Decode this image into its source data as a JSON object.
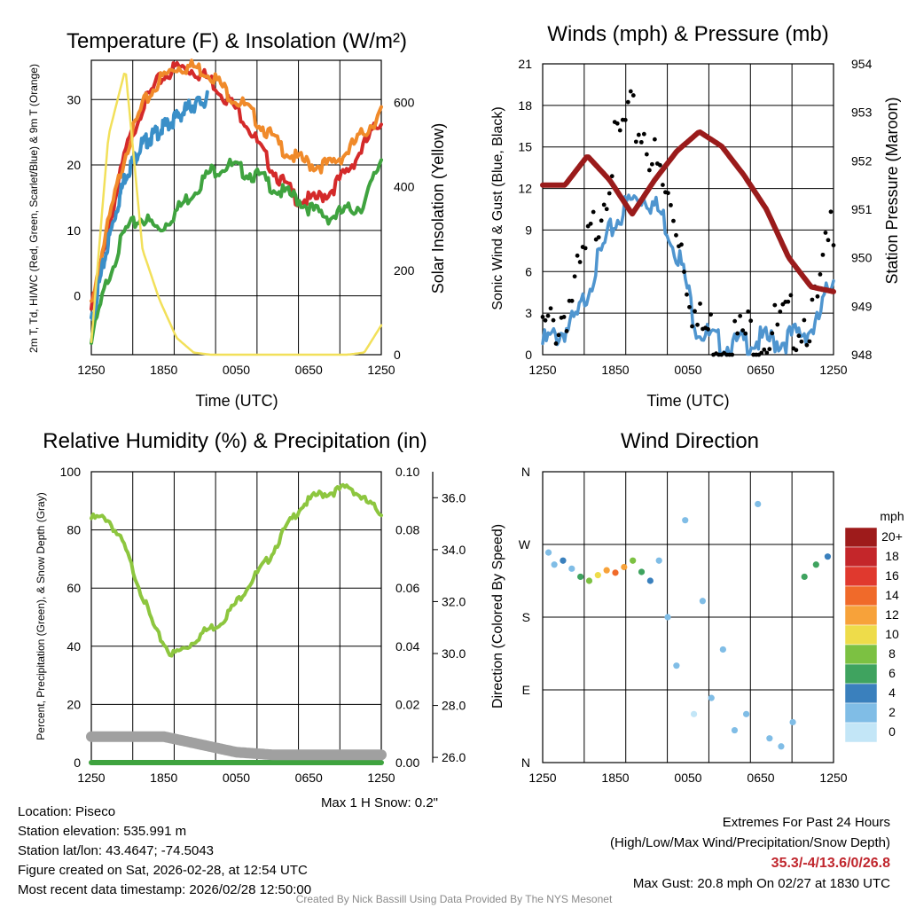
{
  "chart_data": [
    {
      "type": "line",
      "title": "Temperature (F) & Insolation (W/m²)",
      "xlabel": "Time (UTC)",
      "ylabel": "2m T, Td, HI/WC (Red, Green, Scarlet/Blue) & 9m T (Orange)",
      "y2label": "Solar Insolation (Yellow)",
      "x_ticks": [
        "1250",
        "1850",
        "0050",
        "0650",
        "1250"
      ],
      "ylim": [
        -9,
        36
      ],
      "y_ticks": [
        0,
        10,
        20,
        30
      ],
      "y2lim": [
        0,
        700
      ],
      "y2_ticks": [
        0,
        200,
        400,
        600
      ],
      "series": [
        {
          "name": "2m Temperature",
          "color": "#d42a2a",
          "axis": "left",
          "values": [
            -2,
            10,
            22,
            29,
            33,
            35,
            34.5,
            33,
            30,
            27,
            22,
            18,
            15,
            14.5,
            16,
            19,
            23,
            27
          ]
        },
        {
          "name": "9m Temperature",
          "color": "#f08a2a",
          "axis": "left",
          "values": [
            -1,
            11,
            22,
            29,
            33,
            35,
            35,
            34,
            31,
            29,
            26,
            23,
            21,
            20,
            20,
            22,
            25,
            28
          ]
        },
        {
          "name": "Dew Point",
          "color": "#3fa33f",
          "axis": "left",
          "values": [
            -7,
            3,
            10,
            12,
            10,
            13,
            16,
            19,
            20,
            19,
            18,
            16,
            15,
            13,
            12,
            13,
            14,
            21
          ]
        },
        {
          "name": "Wind Chill",
          "color": "#3a8fc8",
          "axis": "left",
          "values": [
            -4,
            8,
            18,
            23,
            25,
            27,
            29,
            30
          ]
        },
        {
          "name": "Solar Insolation",
          "color": "#f2e05a",
          "axis": "right",
          "values": [
            30,
            520,
            680,
            250,
            130,
            40,
            5,
            0,
            0,
            0,
            0,
            0,
            0,
            0,
            0,
            0,
            5,
            70
          ]
        }
      ]
    },
    {
      "type": "line",
      "title": "Winds (mph) & Pressure (mb)",
      "xlabel": "Time (UTC)",
      "ylabel": "Sonic Wind & Gust (Blue, Black)",
      "y2label": "Station Pressure (Maroon)",
      "x_ticks": [
        "1250",
        "1850",
        "0050",
        "0650",
        "1250"
      ],
      "ylim": [
        0,
        21
      ],
      "y_ticks": [
        0,
        3,
        6,
        9,
        12,
        15,
        18,
        21
      ],
      "y2lim": [
        948,
        954
      ],
      "y2_ticks": [
        948,
        949,
        950,
        951,
        952,
        953,
        954
      ],
      "series": [
        {
          "name": "Sonic Wind",
          "color": "#4f95cf",
          "axis": "left",
          "values": [
            0.8,
            1.5,
            2.5,
            6,
            9,
            11,
            11.5,
            10,
            7,
            2,
            1,
            0.5,
            1,
            1,
            1,
            1.5,
            2,
            6
          ]
        },
        {
          "name": "Gust",
          "color": "#000000",
          "axis": "left",
          "style": "points",
          "values": [
            1.5,
            2.5,
            5,
            9,
            14,
            17,
            16,
            12,
            9,
            2,
            1.5,
            1,
            1.5,
            1.5,
            2,
            2.5,
            3,
            10
          ]
        },
        {
          "name": "Station Pressure",
          "color": "#9a1b1b",
          "axis": "right",
          "values": [
            951.5,
            951.5,
            952.1,
            951.6,
            950.9,
            951.6,
            952.2,
            952.6,
            952.3,
            951.7,
            951.0,
            950.0,
            949.4,
            949.3
          ]
        }
      ]
    },
    {
      "type": "line",
      "title": "Relative Humidity (%) & Precipitation (in)",
      "ylabel": "Percent, Precipitation (Green), & Snow Depth (Gray)",
      "x_ticks": [
        "1250",
        "1850",
        "0050",
        "0650",
        "1250"
      ],
      "ylim": [
        0,
        100
      ],
      "y_ticks": [
        0,
        20,
        40,
        60,
        80,
        100
      ],
      "y2lim": [
        0,
        0.1
      ],
      "y2_ticks": [
        "0.00",
        "0.02",
        "0.04",
        "0.06",
        "0.08",
        "0.10"
      ],
      "y3lim": [
        25.8,
        37.0
      ],
      "y3_ticks": [
        "26.0",
        "28.0",
        "30.0",
        "32.0",
        "34.0",
        "36.0"
      ],
      "series": [
        {
          "name": "Relative Humidity",
          "color": "#8dc63f",
          "axis": "left",
          "values": [
            84,
            84,
            75,
            60,
            45,
            37,
            40,
            45,
            48,
            55,
            63,
            70,
            80,
            88,
            92,
            93,
            95,
            90,
            86
          ]
        },
        {
          "name": "Precipitation",
          "color": "#3fa33f",
          "axis": "y2",
          "values": [
            0,
            0
          ]
        },
        {
          "name": "Snow Depth",
          "color": "#a0a0a0",
          "axis": "y3",
          "values": [
            26.8,
            26.8,
            26.8,
            26.5,
            26.2,
            26.1,
            26.1,
            26.1,
            26.1
          ]
        }
      ],
      "note": "Max 1 H Snow: 0.2\""
    },
    {
      "type": "scatter",
      "title": "Wind Direction",
      "ylabel": "Direction (Colored By Speed)",
      "x_ticks": [
        "1250",
        "1850",
        "0050",
        "0650",
        "1250"
      ],
      "y_ticks": [
        "N",
        "E",
        "S",
        "W",
        "N"
      ],
      "ylim": [
        0,
        360
      ],
      "colorbar": {
        "unit": "mph",
        "labels": [
          "20+",
          "18",
          "16",
          "14",
          "12",
          "10",
          "8",
          "6",
          "4",
          "2",
          "0"
        ],
        "colors": [
          "#9e1b1b",
          "#c4262a",
          "#e0392e",
          "#f06a2a",
          "#f7a23a",
          "#eedc4a",
          "#7cc142",
          "#3fa35f",
          "#3a80bd",
          "#80bde6",
          "#c3e6f7"
        ]
      },
      "points": [
        {
          "t": 0.02,
          "dir": 260,
          "spd": 1
        },
        {
          "t": 0.04,
          "dir": 245,
          "spd": 2
        },
        {
          "t": 0.07,
          "dir": 250,
          "spd": 3
        },
        {
          "t": 0.1,
          "dir": 240,
          "spd": 2
        },
        {
          "t": 0.13,
          "dir": 230,
          "spd": 5
        },
        {
          "t": 0.16,
          "dir": 225,
          "spd": 7
        },
        {
          "t": 0.19,
          "dir": 232,
          "spd": 9
        },
        {
          "t": 0.22,
          "dir": 238,
          "spd": 12
        },
        {
          "t": 0.25,
          "dir": 235,
          "spd": 14
        },
        {
          "t": 0.28,
          "dir": 242,
          "spd": 11
        },
        {
          "t": 0.31,
          "dir": 250,
          "spd": 8
        },
        {
          "t": 0.34,
          "dir": 236,
          "spd": 5
        },
        {
          "t": 0.37,
          "dir": 225,
          "spd": 3
        },
        {
          "t": 0.4,
          "dir": 250,
          "spd": 1
        },
        {
          "t": 0.43,
          "dir": 180,
          "spd": 1
        },
        {
          "t": 0.46,
          "dir": 120,
          "spd": 1
        },
        {
          "t": 0.49,
          "dir": 300,
          "spd": 1
        },
        {
          "t": 0.52,
          "dir": 60,
          "spd": 0
        },
        {
          "t": 0.55,
          "dir": 200,
          "spd": 1
        },
        {
          "t": 0.58,
          "dir": 80,
          "spd": 2
        },
        {
          "t": 0.62,
          "dir": 140,
          "spd": 1
        },
        {
          "t": 0.66,
          "dir": 40,
          "spd": 1
        },
        {
          "t": 0.7,
          "dir": 60,
          "spd": 1
        },
        {
          "t": 0.74,
          "dir": 320,
          "spd": 1
        },
        {
          "t": 0.78,
          "dir": 30,
          "spd": 1
        },
        {
          "t": 0.82,
          "dir": 20,
          "spd": 2
        },
        {
          "t": 0.86,
          "dir": 50,
          "spd": 1
        },
        {
          "t": 0.9,
          "dir": 230,
          "spd": 5
        },
        {
          "t": 0.94,
          "dir": 245,
          "spd": 6
        },
        {
          "t": 0.98,
          "dir": 255,
          "spd": 4
        }
      ]
    }
  ],
  "info": {
    "location": "Location: Piseco",
    "elevation": "Station elevation: 535.991 m",
    "latlon": "Station lat/lon: 43.4647; -74.5043",
    "created": "Figure created on Sat, 2026-02-28, at 12:54 UTC",
    "recent": "Most recent data timestamp: 2026/02/28 12:50:00"
  },
  "extremes": {
    "heading": "Extremes For Past 24 Hours",
    "subheading": "(High/Low/Max Wind/Precipitation/Snow Depth)",
    "values": "35.3/-4/13.6/0/26.8",
    "gust": "Max Gust: 20.8 mph On 02/27 at 1830 UTC"
  },
  "credit": "Created By Nick Bassill Using Data Provided By The NYS Mesonet"
}
